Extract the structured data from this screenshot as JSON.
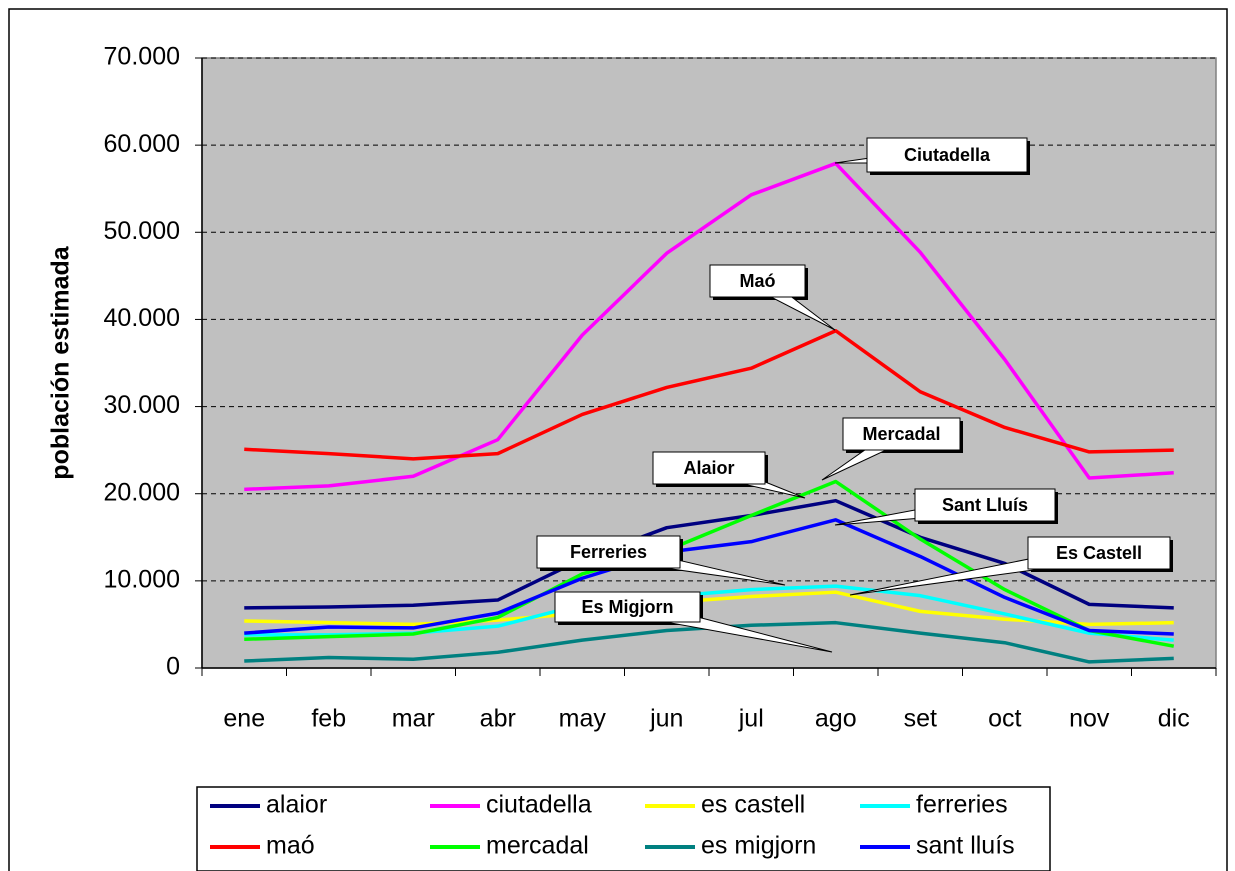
{
  "chart_data": {
    "type": "line",
    "y_label": "población estimada",
    "categories": [
      "ene",
      "feb",
      "mar",
      "abr",
      "may",
      "jun",
      "jul",
      "ago",
      "set",
      "oct",
      "nov",
      "dic"
    ],
    "ylim": [
      0,
      70000
    ],
    "yticks": [
      0,
      {
        "value": 10000,
        "label": "10.000"
      },
      {
        "value": 20000,
        "label": "20.000"
      },
      {
        "value": 30000,
        "label": "30.000"
      },
      {
        "value": 40000,
        "label": "40.000"
      },
      {
        "value": 50000,
        "label": "50.000"
      },
      {
        "value": 60000,
        "label": "60.000"
      },
      {
        "value": 70000,
        "label": "70.000"
      }
    ],
    "grid": true,
    "series": [
      {
        "name": "alaior",
        "color": "#000080",
        "values": [
          6900,
          7000,
          7200,
          7800,
          12500,
          16100,
          17500,
          19200,
          15000,
          12000,
          7300,
          6900
        ]
      },
      {
        "name": "ciutadella",
        "color": "#FF00FF",
        "values": [
          20500,
          20900,
          22000,
          26200,
          38200,
          47600,
          54300,
          57900,
          47700,
          35400,
          21800,
          22400
        ]
      },
      {
        "name": "es castell",
        "color": "#FFFF00",
        "values": [
          5400,
          5200,
          5000,
          5500,
          6300,
          7500,
          8200,
          8700,
          6500,
          5600,
          5000,
          5200
        ]
      },
      {
        "name": "ferreries",
        "color": "#00FFFF",
        "values": [
          3800,
          3800,
          4000,
          4800,
          7300,
          8200,
          9000,
          9400,
          8300,
          6200,
          4000,
          3200
        ]
      },
      {
        "name": "maó",
        "color": "#FF0000",
        "values": [
          25100,
          24600,
          24000,
          24600,
          29100,
          32200,
          34400,
          38700,
          31700,
          27600,
          24800,
          25000
        ]
      },
      {
        "name": "mercadal",
        "color": "#00FF00",
        "values": [
          3300,
          3600,
          3900,
          5800,
          10800,
          13500,
          17500,
          21400,
          14800,
          9000,
          4300,
          2500
        ]
      },
      {
        "name": "es migjorn",
        "color": "#008080",
        "values": [
          800,
          1200,
          1000,
          1800,
          3200,
          4300,
          4900,
          5200,
          4000,
          2900,
          700,
          1100
        ]
      },
      {
        "name": "sant lluís",
        "color": "#0000FF",
        "values": [
          4000,
          4700,
          4600,
          6300,
          10300,
          13300,
          14500,
          17000,
          12800,
          8100,
          4300,
          3900
        ]
      }
    ],
    "annotations": [
      "Ciutadella",
      "Maó",
      "Mercadal",
      "Alaior",
      "Sant Lluís",
      "Ferreries",
      "Es Castell",
      "Es Migjorn"
    ]
  }
}
